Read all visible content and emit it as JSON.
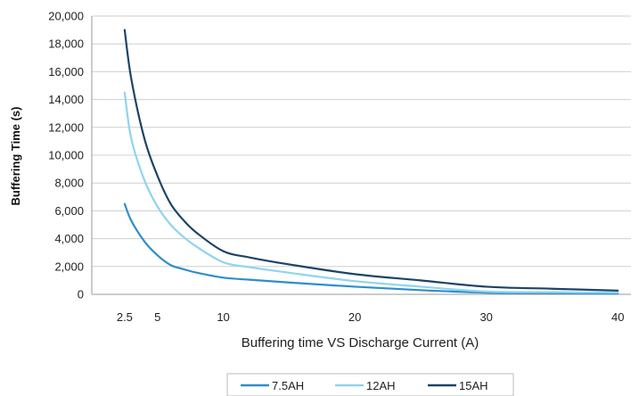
{
  "chart_data": {
    "type": "line",
    "title": "",
    "xlabel": "Buffering time  VS  Discharge Current (A)",
    "ylabel": "Buffering Time (s)",
    "xlim": [
      0,
      41
    ],
    "ylim": [
      0,
      20000
    ],
    "x_ticks": [
      2.5,
      5,
      10,
      20,
      30,
      40
    ],
    "x_tick_labels": [
      "2.5",
      "5",
      "10",
      "20",
      "30",
      "40"
    ],
    "y_ticks": [
      0,
      2000,
      4000,
      6000,
      8000,
      10000,
      12000,
      14000,
      16000,
      18000,
      20000
    ],
    "y_tick_labels": [
      "0",
      "2,000",
      "4,000",
      "6,000",
      "8,000",
      "10,000",
      "12,000",
      "14,000",
      "16,000",
      "18,000",
      "20,000"
    ],
    "grid": true,
    "legend_position": "bottom",
    "x": [
      2.5,
      3,
      4,
      5,
      6,
      7,
      8,
      10,
      12,
      15,
      20,
      25,
      30,
      35,
      40
    ],
    "series": [
      {
        "name": "7.5AH",
        "color": "#2e8ecb",
        "values": [
          6500,
          5300,
          3800,
          2800,
          2100,
          1800,
          1550,
          1200,
          1050,
          850,
          550,
          300,
          120,
          80,
          50
        ]
      },
      {
        "name": "12AH",
        "color": "#8fd4ee",
        "values": [
          14500,
          11200,
          8200,
          6300,
          5000,
          4100,
          3400,
          2300,
          1950,
          1550,
          950,
          550,
          200,
          150,
          120
        ]
      },
      {
        "name": "15AH",
        "color": "#1c4466",
        "values": [
          19000,
          15500,
          11200,
          8500,
          6500,
          5300,
          4400,
          3100,
          2650,
          2150,
          1450,
          1000,
          550,
          400,
          270
        ]
      }
    ]
  }
}
